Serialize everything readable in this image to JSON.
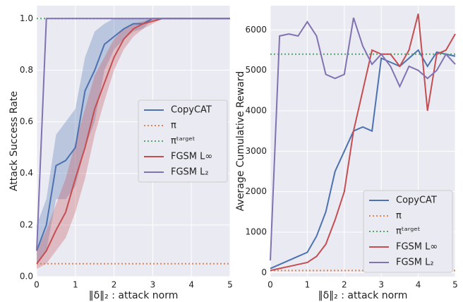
{
  "chart_data": [
    {
      "type": "line",
      "ylabel": "Attack Success Rate",
      "xlabel": "‖δ‖₂ : attack norm",
      "x": [
        0,
        0.25,
        0.5,
        0.75,
        1,
        1.25,
        1.5,
        1.75,
        2,
        2.25,
        2.5,
        2.75,
        3,
        3.25,
        3.5,
        3.75,
        4,
        4.25,
        4.5,
        4.75,
        5
      ],
      "xlim": [
        0,
        5
      ],
      "xticks": [
        0,
        1,
        2,
        3,
        4,
        5
      ],
      "ylim": [
        0,
        1.05
      ],
      "yticks": [
        {
          "value": 0,
          "label": "0.0"
        },
        0.2,
        0.4,
        0.6,
        0.8,
        {
          "value": 1,
          "label": "1.0"
        }
      ],
      "grid": true,
      "legend": "center right",
      "series": [
        {
          "name": "CopyCAT",
          "color": "#4c72b0",
          "values": [
            0.1,
            0.2,
            0.43,
            0.45,
            0.5,
            0.72,
            0.8,
            0.9,
            0.93,
            0.96,
            0.98,
            0.98,
            1,
            1,
            1,
            1,
            1,
            1,
            1,
            1,
            1
          ],
          "lower": [
            0.05,
            0.1,
            0.3,
            0.3,
            0.35,
            0.5,
            0.6,
            0.8,
            0.88,
            0.92,
            0.95,
            0.96,
            1,
            1,
            1,
            1,
            1,
            1,
            1,
            1,
            1
          ],
          "upper": [
            0.2,
            0.3,
            0.55,
            0.6,
            0.65,
            0.85,
            0.95,
            0.98,
            1,
            1,
            1,
            1,
            1,
            1,
            1,
            1,
            1,
            1,
            1,
            1,
            1
          ]
        },
        {
          "name": "π",
          "color": "#dd8452",
          "style": "dotted",
          "values": [
            0.05,
            0.05,
            0.05,
            0.05,
            0.05,
            0.05,
            0.05,
            0.05,
            0.05,
            0.05,
            0.05,
            0.05,
            0.05,
            0.05,
            0.05,
            0.05,
            0.05,
            0.05,
            0.05,
            0.05,
            0.05
          ]
        },
        {
          "name": "πᵗᵃʳᵍᵉᵗ",
          "color": "#55a868",
          "style": "dotted",
          "values": [
            1,
            1,
            1,
            1,
            1,
            1,
            1,
            1,
            1,
            1,
            1,
            1,
            1,
            1,
            1,
            1,
            1,
            1,
            1,
            1,
            1
          ]
        },
        {
          "name": "FGSM L∞",
          "color": "#c44e52",
          "values": [
            0.05,
            0.1,
            0.18,
            0.25,
            0.38,
            0.5,
            0.65,
            0.75,
            0.85,
            0.92,
            0.96,
            0.98,
            0.99,
            1,
            1,
            1,
            1,
            1,
            1,
            1,
            1
          ],
          "lower": [
            0.03,
            0.05,
            0.1,
            0.15,
            0.25,
            0.38,
            0.55,
            0.68,
            0.8,
            0.88,
            0.93,
            0.96,
            0.98,
            1,
            1,
            1,
            1,
            1,
            1,
            1,
            1
          ],
          "upper": [
            0.1,
            0.18,
            0.28,
            0.38,
            0.52,
            0.65,
            0.78,
            0.85,
            0.92,
            0.96,
            0.98,
            0.99,
            1,
            1,
            1,
            1,
            1,
            1,
            1,
            1,
            1
          ]
        },
        {
          "name": "FGSM L₂",
          "color": "#8172b2",
          "values": [
            0.1,
            1,
            1,
            1,
            1,
            1,
            1,
            1,
            1,
            1,
            1,
            1,
            1,
            1,
            1,
            1,
            1,
            1,
            1,
            1,
            1
          ]
        }
      ]
    },
    {
      "type": "line",
      "ylabel": "Average Cumulative Reward",
      "xlabel": "‖δ‖₂ : attack norm",
      "x": [
        0,
        0.25,
        0.5,
        0.75,
        1,
        1.25,
        1.5,
        1.75,
        2,
        2.25,
        2.5,
        2.75,
        3,
        3.25,
        3.5,
        3.75,
        4,
        4.25,
        4.5,
        4.75,
        5
      ],
      "xlim": [
        0,
        5
      ],
      "xticks": [
        0,
        1,
        2,
        3,
        4,
        5
      ],
      "ylim": [
        -100,
        6600
      ],
      "yticks": [
        0,
        1000,
        2000,
        3000,
        4000,
        5000,
        6000
      ],
      "grid": true,
      "legend": "lower right",
      "series": [
        {
          "name": "CopyCAT",
          "color": "#4c72b0",
          "values": [
            100,
            200,
            300,
            400,
            500,
            900,
            1500,
            2500,
            3000,
            3500,
            3600,
            3500,
            5300,
            5200,
            5100,
            5300,
            5500,
            5100,
            5450,
            5400,
            5350
          ]
        },
        {
          "name": "π",
          "color": "#dd8452",
          "style": "dotted",
          "values": [
            50,
            50,
            50,
            50,
            50,
            50,
            50,
            50,
            50,
            50,
            50,
            50,
            50,
            50,
            50,
            50,
            50,
            50,
            50,
            50,
            50
          ]
        },
        {
          "name": "πᵗᵃʳᵍᵉᵗ",
          "color": "#55a868",
          "style": "dotted",
          "values": [
            5400,
            5400,
            5400,
            5400,
            5400,
            5400,
            5400,
            5400,
            5400,
            5400,
            5400,
            5400,
            5400,
            5400,
            5400,
            5400,
            5400,
            5400,
            5400,
            5400,
            5400
          ]
        },
        {
          "name": "FGSM L∞",
          "color": "#c44e52",
          "values": [
            50,
            100,
            150,
            200,
            250,
            400,
            700,
            1300,
            2000,
            3500,
            4500,
            5500,
            5400,
            5400,
            5100,
            5500,
            6400,
            4000,
            5400,
            5500,
            5900
          ]
        },
        {
          "name": "FGSM L₂",
          "color": "#8172b2",
          "values": [
            300,
            5850,
            5900,
            5850,
            6200,
            5850,
            4900,
            4800,
            4900,
            6300,
            5600,
            5150,
            5400,
            5100,
            4600,
            5100,
            5000,
            4800,
            5000,
            5400,
            5150
          ]
        }
      ]
    }
  ]
}
